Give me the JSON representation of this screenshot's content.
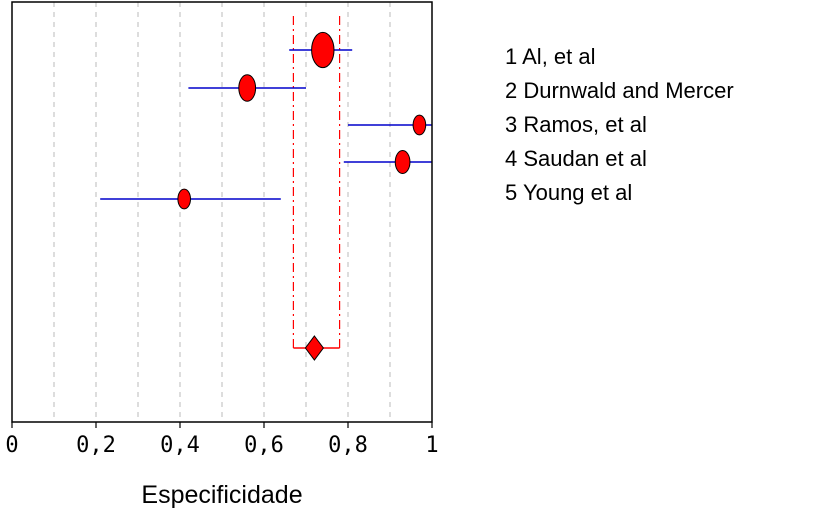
{
  "chart_data": {
    "type": "forest",
    "title": "",
    "xlabel": "Especificidade",
    "ylabel": "",
    "xlim": [
      0,
      1
    ],
    "x_ticks": [
      0,
      0.2,
      0.4,
      0.6,
      0.8,
      1
    ],
    "x_tick_labels": [
      "0",
      "0,2",
      "0,4",
      "0,6",
      "0,8",
      "1"
    ],
    "grid": true,
    "legend_position": "right",
    "studies": [
      {
        "label": "1 Al, et al",
        "estimate": 0.74,
        "ci": [
          0.66,
          0.81
        ],
        "weight": 1.6
      },
      {
        "label": "2 Durnwald and Mercer",
        "estimate": 0.56,
        "ci": [
          0.42,
          0.7
        ],
        "weight": 1.2
      },
      {
        "label": "3 Ramos, et al",
        "estimate": 0.97,
        "ci": [
          0.8,
          1.0
        ],
        "weight": 0.9
      },
      {
        "label": "4 Saudan et al",
        "estimate": 0.93,
        "ci": [
          0.79,
          1.0
        ],
        "weight": 1.05
      },
      {
        "label": "5 Young et al",
        "estimate": 0.41,
        "ci": [
          0.21,
          0.64
        ],
        "weight": 0.9
      }
    ],
    "pooled": {
      "estimate": 0.72,
      "ci": [
        0.67,
        0.78
      ]
    },
    "colors": {
      "marker": "#ff0000",
      "ci_line": "#0000cc",
      "pooled_line": "#ff0000",
      "grid": "#bbbbbb"
    }
  }
}
